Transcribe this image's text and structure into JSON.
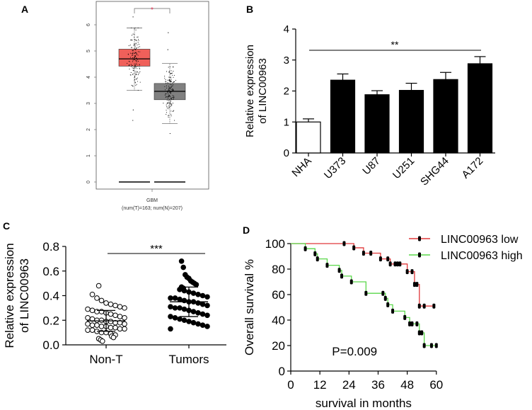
{
  "chart_data": [
    {
      "panel": "A",
      "type": "box",
      "xlabel": "GBM",
      "xsublabel": "(num(T)=163; num(N)=207)",
      "ylim": [
        0,
        6.5
      ],
      "yticks": [
        "0",
        "1",
        "2",
        "3",
        "4",
        "5",
        "6"
      ],
      "significance": "*",
      "groups": [
        {
          "name": "T",
          "n": 163,
          "color": "#f0605a",
          "q1": 4.42,
          "median": 4.7,
          "q3": 5.07,
          "whisker_low": 3.5,
          "whisker_high": 5.88,
          "outliers": [
            6.3,
            2.75,
            2.35
          ]
        },
        {
          "name": "N",
          "n": 207,
          "color": "#808080",
          "q1": 3.14,
          "median": 3.46,
          "q3": 3.76,
          "whisker_low": 2.23,
          "whisker_high": 4.52,
          "outliers": [
            5.7,
            5.05,
            1.85
          ]
        }
      ]
    },
    {
      "panel": "B",
      "type": "bar",
      "ylabel": "Relative expression\nof LINC00963",
      "ylabel_lines": [
        "Relative expression",
        "of LINC00963"
      ],
      "ylim": [
        0,
        4
      ],
      "yticks": [
        "0",
        "1",
        "2",
        "3",
        "4"
      ],
      "categories": [
        "NHA",
        "U373",
        "U87",
        "U251",
        "SHG44",
        "A172"
      ],
      "values": [
        1.0,
        2.35,
        1.88,
        2.02,
        2.37,
        2.88
      ],
      "errors": [
        0.1,
        0.2,
        0.13,
        0.23,
        0.23,
        0.23
      ],
      "fills": [
        "#ffffff",
        "#000000",
        "#000000",
        "#000000",
        "#000000",
        "#000000"
      ],
      "significance": "**"
    },
    {
      "panel": "C",
      "type": "scatter",
      "ylabel_lines": [
        "Relative expression",
        "of LINC00963"
      ],
      "ylim": [
        0,
        0.8
      ],
      "yticks": [
        "0.0",
        "0.2",
        "0.4",
        "0.6",
        "0.8"
      ],
      "significance": "***",
      "groups": [
        {
          "name": "Non-T",
          "mean": 0.195,
          "sd": 0.085,
          "filled": false,
          "values": [
            0.48,
            0.41,
            0.38,
            0.36,
            0.34,
            0.33,
            0.32,
            0.31,
            0.3,
            0.29,
            0.28,
            0.27,
            0.27,
            0.26,
            0.25,
            0.24,
            0.23,
            0.22,
            0.22,
            0.21,
            0.2,
            0.2,
            0.19,
            0.19,
            0.18,
            0.18,
            0.17,
            0.17,
            0.16,
            0.16,
            0.15,
            0.15,
            0.14,
            0.14,
            0.13,
            0.13,
            0.12,
            0.12,
            0.11,
            0.1,
            0.1,
            0.09,
            0.08,
            0.07,
            0.06,
            0.05,
            0.04,
            0.03
          ]
        },
        {
          "name": "Tumors",
          "mean": 0.35,
          "sd": 0.12,
          "filled": true,
          "values": [
            0.68,
            0.63,
            0.57,
            0.55,
            0.54,
            0.52,
            0.51,
            0.5,
            0.49,
            0.47,
            0.46,
            0.45,
            0.44,
            0.43,
            0.42,
            0.41,
            0.4,
            0.39,
            0.38,
            0.38,
            0.37,
            0.36,
            0.35,
            0.35,
            0.34,
            0.33,
            0.32,
            0.31,
            0.3,
            0.3,
            0.29,
            0.28,
            0.27,
            0.26,
            0.25,
            0.24,
            0.23,
            0.22,
            0.21,
            0.2,
            0.19,
            0.18,
            0.17,
            0.16,
            0.15,
            0.13
          ]
        }
      ]
    },
    {
      "panel": "D",
      "type": "line",
      "subtype": "kaplan-meier",
      "xlabel": "survival in months",
      "ylabel": "Overall survival %",
      "xlim": [
        0,
        60
      ],
      "ylim": [
        0,
        100
      ],
      "xticks": [
        "0",
        "12",
        "24",
        "36",
        "48",
        "60"
      ],
      "yticks": [
        "0",
        "20",
        "40",
        "60",
        "80",
        "100"
      ],
      "annotation": "P=0.009",
      "legend_position": "top-right",
      "series": [
        {
          "name": "LINC00963 low",
          "color": "#e0383a",
          "steps": [
            [
              0,
              100
            ],
            [
              26,
              96.7
            ],
            [
              30,
              92.5
            ],
            [
              37,
              88
            ],
            [
              41,
              84
            ],
            [
              48,
              78
            ],
            [
              51,
              68
            ],
            [
              53,
              51
            ],
            [
              59,
              51
            ]
          ],
          "censored": [
            [
              22,
              100
            ],
            [
              26,
              96.7
            ],
            [
              30,
              92.5
            ],
            [
              33,
              92.5
            ],
            [
              37,
              88
            ],
            [
              40,
              88
            ],
            [
              41,
              84
            ],
            [
              43,
              84
            ],
            [
              44,
              84
            ],
            [
              45,
              84
            ],
            [
              48,
              78
            ],
            [
              50,
              78
            ],
            [
              51,
              68
            ],
            [
              52,
              68
            ],
            [
              53,
              51
            ],
            [
              55,
              51
            ],
            [
              59,
              51
            ]
          ]
        },
        {
          "name": "LINC00963 high",
          "color": "#5ad84a",
          "steps": [
            [
              0,
              100
            ],
            [
              6,
              96
            ],
            [
              10,
              92
            ],
            [
              11,
              88
            ],
            [
              15,
              83
            ],
            [
              20,
              79
            ],
            [
              21,
              74.5
            ],
            [
              25,
              70
            ],
            [
              31,
              61
            ],
            [
              39,
              57
            ],
            [
              40,
              52
            ],
            [
              42,
              47
            ],
            [
              47,
              42
            ],
            [
              49,
              37
            ],
            [
              53,
              30
            ],
            [
              55,
              20
            ],
            [
              60,
              20
            ]
          ],
          "censored": [
            [
              6,
              96
            ],
            [
              10,
              92
            ],
            [
              11,
              88
            ],
            [
              15,
              83
            ],
            [
              20,
              79
            ],
            [
              21,
              74.5
            ],
            [
              25,
              70
            ],
            [
              31,
              61
            ],
            [
              38,
              61
            ],
            [
              39,
              57
            ],
            [
              40,
              52
            ],
            [
              42,
              47
            ],
            [
              47,
              42
            ],
            [
              49,
              37
            ],
            [
              50,
              37
            ],
            [
              52,
              37
            ],
            [
              53,
              30
            ],
            [
              54,
              30
            ],
            [
              55,
              20
            ],
            [
              58,
              20
            ],
            [
              60,
              20
            ]
          ]
        }
      ]
    }
  ],
  "panel_labels": [
    "A",
    "B",
    "C",
    "D"
  ]
}
